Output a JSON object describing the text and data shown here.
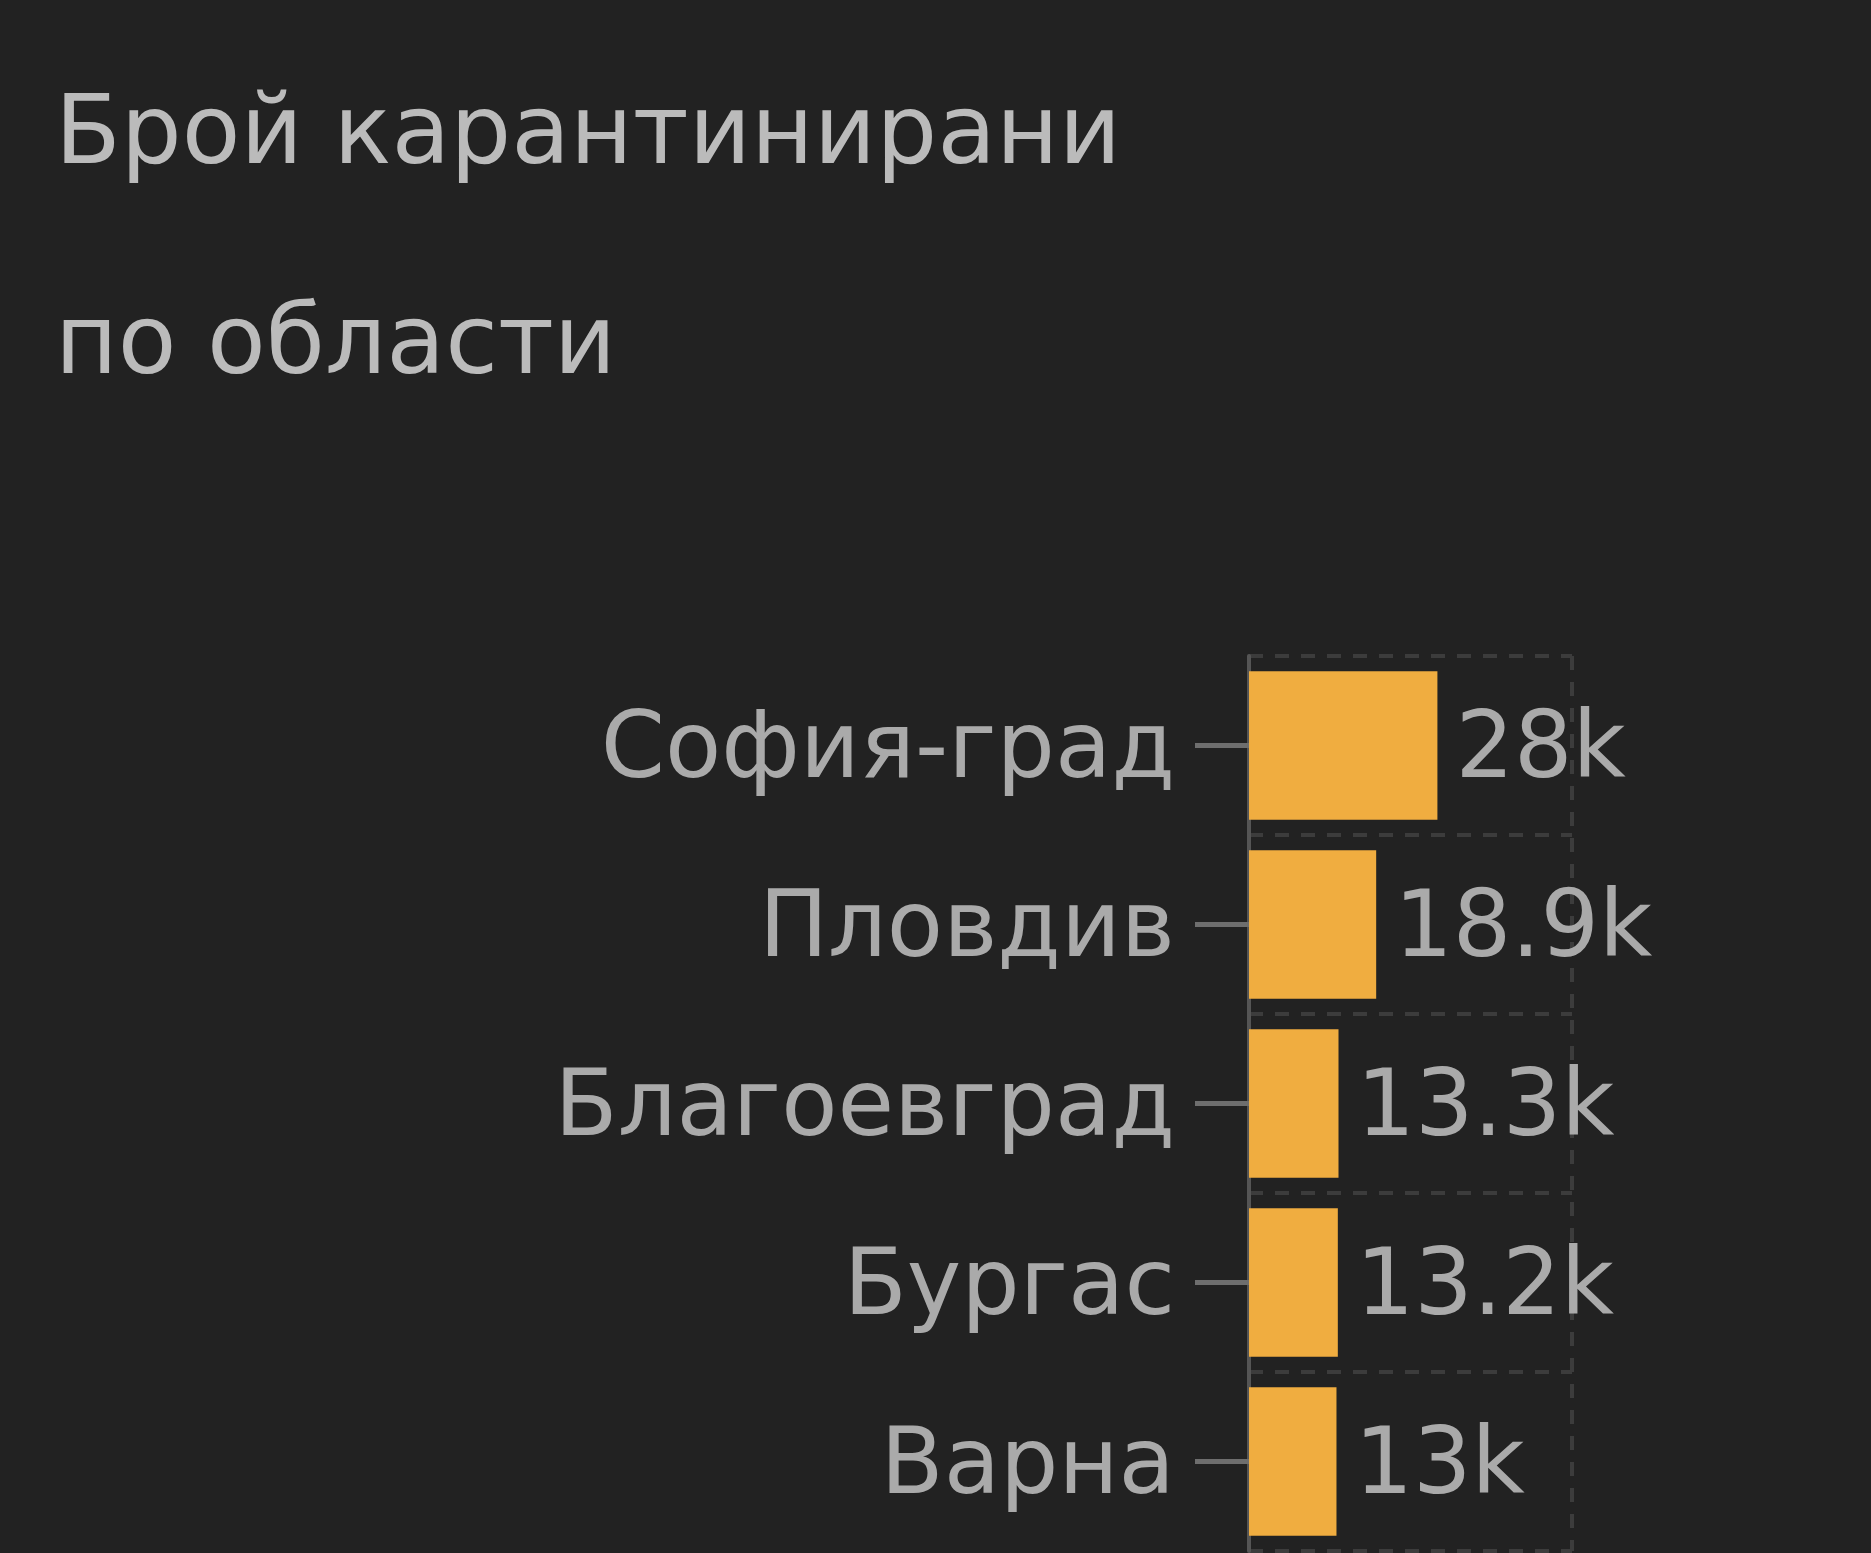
{
  "chart_data": {
    "type": "bar",
    "orientation": "horizontal",
    "title": "Брой карантинирани по области",
    "categories": [
      "София-град",
      "Пловдив",
      "Благоевград",
      "Бургас",
      "Варна"
    ],
    "values": [
      28000,
      18900,
      13300,
      13200,
      13000
    ],
    "value_labels": [
      "28k",
      "18.9k",
      "13.3k",
      "13.2k",
      "13k"
    ],
    "color": "#f0ad40",
    "xlim": [
      0,
      48000
    ],
    "xticks": [
      {
        "value": 0,
        "label": null
      },
      {
        "value": 48000,
        "label": null
      }
    ],
    "grid": true,
    "tick_labels": "y"
  }
}
